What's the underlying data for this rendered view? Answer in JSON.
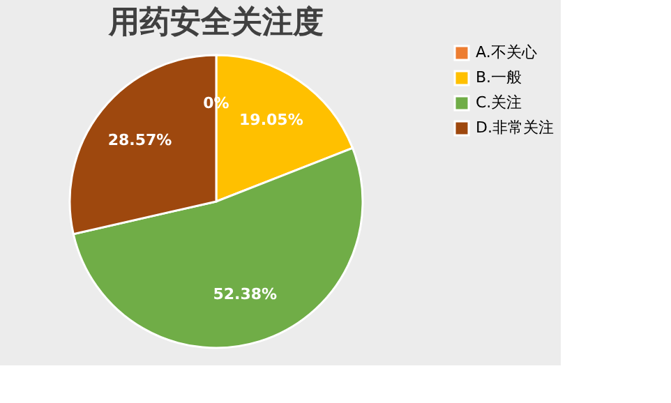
{
  "chart_data": {
    "type": "pie",
    "title": "用药安全关注度",
    "categories": [
      "A.不关心",
      "B.一般",
      "C.关注",
      "D.非常关注"
    ],
    "values": [
      0,
      19.05,
      52.38,
      28.57
    ],
    "colors": [
      "#ed7d31",
      "#ffc000",
      "#70ad47",
      "#9e480e"
    ],
    "value_labels": [
      "0%",
      "19.05%",
      "52.38%",
      "28.57%"
    ],
    "legend": "right"
  }
}
